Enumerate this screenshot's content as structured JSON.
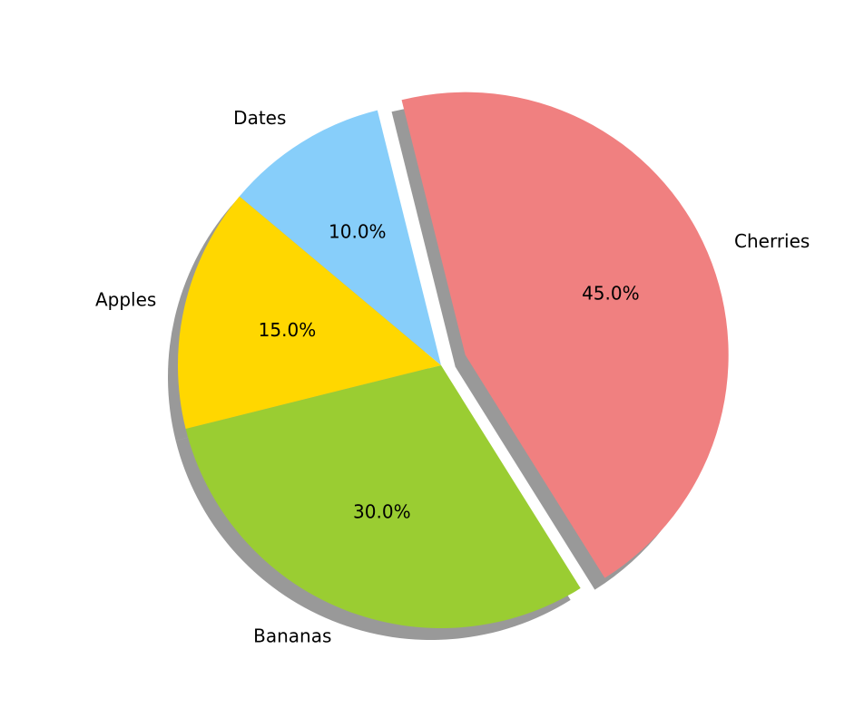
{
  "chart_data": {
    "type": "pie",
    "categories": [
      "Apples",
      "Bananas",
      "Cherries",
      "Dates"
    ],
    "values": [
      15.0,
      30.0,
      45.0,
      10.0
    ],
    "percent_labels": [
      "15.0%",
      "30.0%",
      "45.0%",
      "10.0%"
    ],
    "colors": [
      "#ffd700",
      "#9acd32",
      "#f08080",
      "#87cefa"
    ],
    "exploded": [
      "Cherries"
    ],
    "shadow": true,
    "title": "",
    "legend": "none"
  }
}
